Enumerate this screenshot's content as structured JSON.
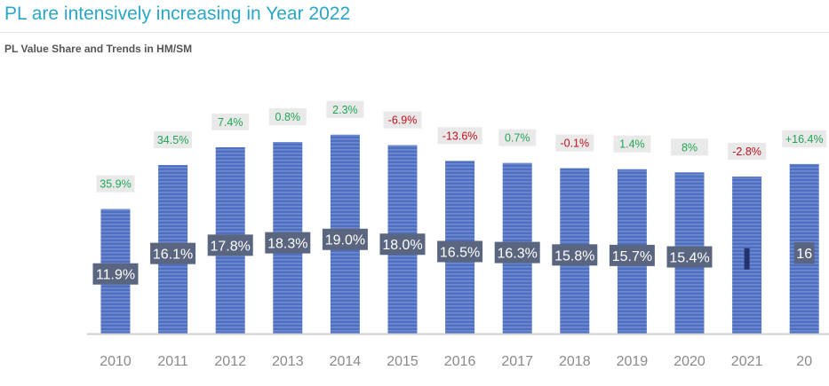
{
  "header": {
    "title": "PL are intensively increasing in Year 2022",
    "subtitle": "PL Value Share and Trends in HM/SM"
  },
  "colors": {
    "bar": "#4f6fc0",
    "bar_stripe": "#6f8ad0",
    "value_box": "#5a6580",
    "value_text": "#ffffff",
    "growth_box": "#e9e9e9",
    "growth_positive": "#1fa653",
    "growth_negative": "#c0101a",
    "axis_label": "#8a8a8a",
    "axis_line": "#cfcfcf"
  },
  "chart_data": {
    "type": "bar",
    "title": "PL Value Share and Trends in HM/SM",
    "categories": [
      "2010",
      "2011",
      "2012",
      "2013",
      "2014",
      "2015",
      "2016",
      "2017",
      "2018",
      "2019",
      "2020",
      "2021",
      "20"
    ],
    "series": [
      {
        "values": [
          11.9,
          16.1,
          17.8,
          18.3,
          19.0,
          18.0,
          16.5,
          16.3,
          15.8,
          15.7,
          15.4,
          15.0,
          16.2
        ]
      }
    ],
    "value_labels": [
      "11.9%",
      "16.1%",
      "17.8%",
      "18.3%",
      "19.0%",
      "18.0%",
      "16.5%",
      "16.3%",
      "15.8%",
      "15.7%",
      "15.4%",
      "",
      "16"
    ],
    "growth_labels": [
      "35.9%",
      "34.5%",
      "7.4%",
      "0.8%",
      "2.3%",
      "-6.9%",
      "-13.6%",
      "0.7%",
      "-0.1%",
      "1.4%",
      "8%",
      "-2.8%",
      "+16.4%"
    ],
    "ylim": [
      0,
      22
    ],
    "grid": false,
    "legend": "none"
  }
}
